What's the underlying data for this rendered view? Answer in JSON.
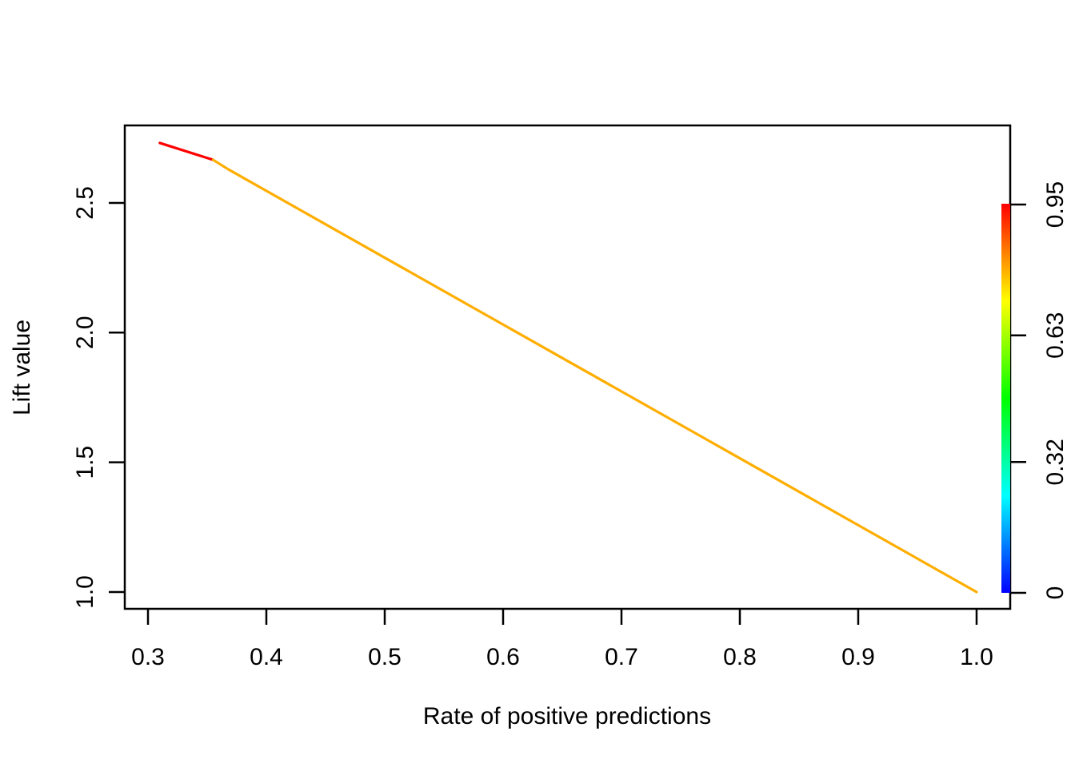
{
  "figure": {
    "background_color": "#ffffff",
    "text_color": "#000000"
  },
  "chart_data": {
    "type": "line",
    "title": "",
    "xlabel": "Rate of positive predictions",
    "ylabel": "Lift value",
    "xlim": [
      0.2804,
      1.0284
    ],
    "ylim": [
      0.9353,
      2.7986
    ],
    "grid": false,
    "legend_position": "right-colorbar",
    "x_ticks": [
      0.3,
      0.4,
      0.5,
      0.6,
      0.7,
      0.8,
      0.9,
      1.0
    ],
    "x_tick_labels": [
      "0.3",
      "0.4",
      "0.5",
      "0.6",
      "0.7",
      "0.8",
      "0.9",
      "1.0"
    ],
    "y_ticks": [
      1.0,
      1.5,
      2.0,
      2.5
    ],
    "y_tick_labels": [
      "1.0",
      "1.5",
      "2.0",
      "2.5"
    ],
    "series": [
      {
        "name": "lift-curve-segment-high-cutoff",
        "color": "#ff0000",
        "points": [
          [
            0.31,
            2.731
          ],
          [
            0.355,
            2.666
          ]
        ]
      },
      {
        "name": "lift-curve-segment-mid-cutoff",
        "color": "#ffae00",
        "points": [
          [
            0.355,
            2.666
          ],
          [
            0.368,
            2.629
          ],
          [
            1.0,
            1.0
          ]
        ]
      }
    ],
    "colorbar": {
      "range": [
        0,
        0.95
      ],
      "ticks": [
        0.95,
        0.63,
        0.32,
        0
      ],
      "tick_labels": [
        "0.95",
        "0.63",
        "0.32",
        "0"
      ],
      "gradient_top_to_bottom": [
        "#ff0000",
        "#ffff00",
        "#00ff00",
        "#00ffff",
        "#0000ff"
      ]
    }
  }
}
